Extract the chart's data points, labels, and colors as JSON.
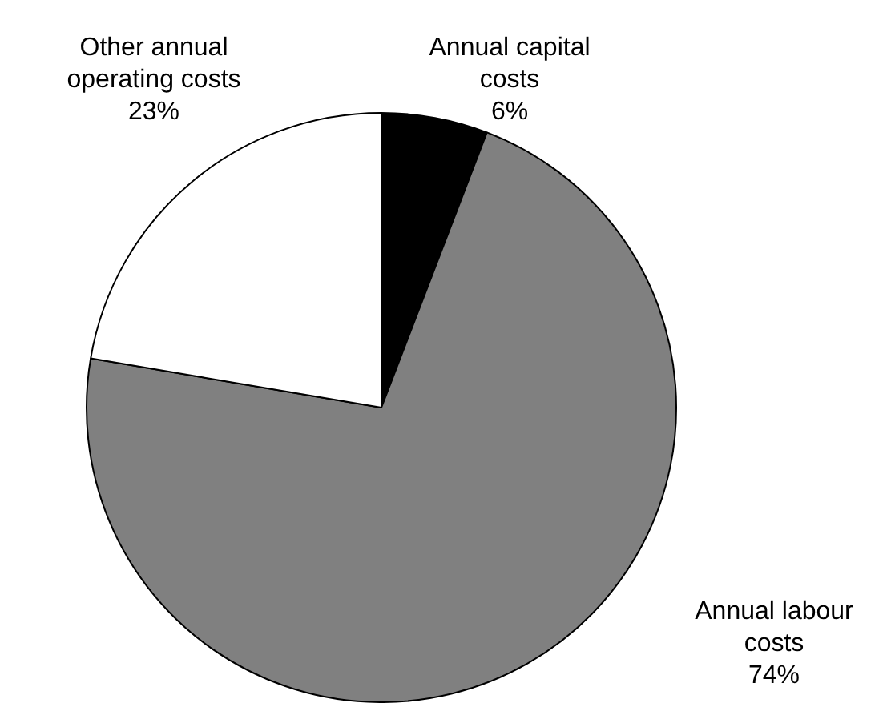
{
  "chart_data": {
    "type": "pie",
    "categories": [
      "Annual capital costs",
      "Annual labour costs",
      "Other annual operating costs"
    ],
    "values": [
      6,
      74,
      23
    ],
    "value_labels": [
      "6%",
      "74%",
      "23%"
    ],
    "colors": [
      "#000000",
      "#808080",
      "#ffffff"
    ],
    "legend": false
  }
}
